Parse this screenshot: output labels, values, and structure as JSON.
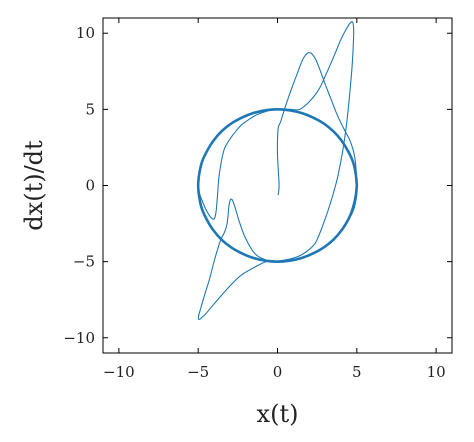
{
  "chart_data": {
    "type": "line",
    "title": "",
    "xlabel": "x(t)",
    "ylabel": "dx(t)/dt",
    "xlim": [
      -11,
      11
    ],
    "ylim": [
      -11,
      11
    ],
    "xticks": [
      -10,
      -5,
      0,
      5,
      10
    ],
    "yticks": [
      -10,
      -5,
      0,
      5,
      10
    ],
    "xtick_labels": [
      "−10",
      "−5",
      "0",
      "5",
      "10"
    ],
    "ytick_labels": [
      "−10",
      "−5",
      "0",
      "5",
      "10"
    ],
    "grid": false,
    "legend": "none",
    "line_color": "#1f77b4",
    "series": [
      {
        "role": "limit-cycle",
        "x": [
          5,
          4.93,
          4.76,
          4.44,
          4.04,
          3.54,
          2.94,
          2.24,
          1.52,
          0.76,
          0,
          -0.76,
          -1.52,
          -2.24,
          -2.94,
          -3.54,
          -4.04,
          -4.44,
          -4.76,
          -4.93,
          -5,
          -4.93,
          -4.76,
          -4.44,
          -4.04,
          -3.54,
          -2.94,
          -2.24,
          -1.52,
          -0.76,
          0,
          0.76,
          1.52,
          2.24,
          2.94,
          3.54,
          4.04,
          4.44,
          4.76,
          4.93,
          5
        ],
        "y": [
          0,
          0.78,
          1.55,
          2.27,
          2.94,
          3.54,
          4.05,
          4.46,
          4.76,
          4.94,
          5,
          4.94,
          4.76,
          4.46,
          4.05,
          3.54,
          2.94,
          2.27,
          1.55,
          0.78,
          0,
          -0.78,
          -1.55,
          -2.27,
          -2.94,
          -3.54,
          -4.05,
          -4.46,
          -4.76,
          -4.94,
          -5,
          -4.94,
          -4.76,
          -4.46,
          -4.05,
          -3.54,
          -2.94,
          -2.27,
          -1.55,
          -0.78,
          0
        ]
      },
      {
        "role": "trajectory",
        "x": [
          0.05,
          0.1,
          0.05,
          0,
          0,
          0.05,
          0.2,
          0.5,
          0.9,
          1.3,
          1.6,
          1.9,
          2.1,
          2.2,
          2.4,
          2.6,
          2.85,
          3.1,
          3.4,
          3.7,
          4.0,
          4.3,
          4.55,
          4.75,
          4.88,
          4.95,
          4.97,
          4.9,
          4.7,
          4.4,
          4.0,
          3.5,
          2.9,
          2.2,
          1.5,
          0.8,
          0,
          -0.7,
          -1.4,
          -2.0,
          -2.4,
          -2.6,
          -2.75,
          -2.85,
          -2.95,
          -3.02,
          -3.08,
          -3.12,
          -3.18,
          -3.28,
          -3.4,
          -3.55,
          -3.75,
          -4.0,
          -4.3,
          -4.6,
          -4.85,
          -4.98,
          -4.95,
          -4.8,
          -4.5,
          -4.1,
          -3.6,
          -3.0,
          -2.3,
          -1.5,
          -0.7,
          0.1,
          0.9,
          1.6,
          2.3,
          2.6,
          2.9,
          3.2,
          3.5,
          3.8,
          4.1,
          4.35,
          4.55,
          4.7,
          4.78,
          4.8,
          4.75,
          4.6,
          4.35,
          4.0,
          3.6,
          3.1,
          2.6,
          2.0,
          1.4,
          0.8,
          0.2,
          -0.4,
          -0.9,
          -1.4,
          -1.85,
          -2.25,
          -2.6,
          -2.9,
          -3.15,
          -3.35,
          -3.5,
          -3.6,
          -3.7,
          -3.75,
          -3.8,
          -3.85,
          -3.9,
          -4.0,
          -4.2,
          -4.5,
          -4.75,
          -4.92,
          -4.98,
          -4.95
        ],
        "y": [
          -0.6,
          0,
          1,
          2,
          3,
          3.8,
          4.2,
          5.2,
          6.4,
          7.5,
          8.3,
          8.7,
          8.7,
          8.6,
          8.3,
          7.8,
          7.1,
          6.4,
          5.6,
          4.8,
          4.1,
          3.5,
          3.0,
          2.4,
          1.8,
          1.1,
          0.3,
          -0.6,
          -1.5,
          -2.3,
          -3.0,
          -3.6,
          -4.1,
          -4.5,
          -4.8,
          -4.95,
          -5.0,
          -4.9,
          -4.5,
          -3.5,
          -2.4,
          -1.7,
          -1.2,
          -0.95,
          -0.9,
          -1.1,
          -1.5,
          -2.0,
          -2.5,
          -2.9,
          -3.2,
          -3.5,
          -4.1,
          -5.0,
          -6.2,
          -7.2,
          -8.1,
          -8.6,
          -8.8,
          -8.7,
          -8.4,
          -7.9,
          -7.3,
          -6.6,
          -5.9,
          -5.4,
          -5.0,
          -4.95,
          -4.8,
          -4.5,
          -3.9,
          -3.3,
          -2.5,
          -1.6,
          -0.6,
          0.6,
          2.2,
          4.0,
          6.0,
          7.8,
          9.3,
          10.2,
          10.7,
          10.7,
          10.3,
          9.6,
          8.6,
          7.4,
          6.3,
          5.5,
          5.0,
          5.0,
          5.0,
          4.95,
          4.8,
          4.6,
          4.3,
          4.0,
          3.6,
          3.2,
          2.8,
          2.4,
          1.8,
          1.2,
          0.5,
          -0.2,
          -0.9,
          -1.5,
          -1.9,
          -2.2,
          -2.1,
          -1.6,
          -1.0,
          -0.5,
          0,
          0.3
        ]
      }
    ]
  }
}
